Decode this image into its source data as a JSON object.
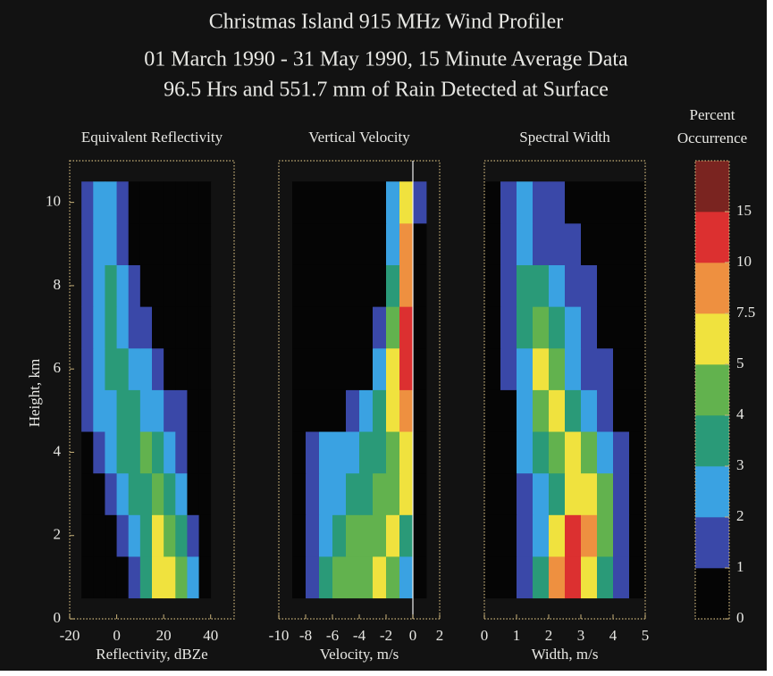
{
  "chart_data": {
    "type": "heatmap",
    "title": [
      "Christmas Island 915 MHz Wind Profiler",
      "01 March 1990 - 31 May 1990, 15 Minute Average Data",
      "96.5 Hrs and 551.7 mm of Rain Detected at Surface"
    ],
    "y_label": "Height, km",
    "ylim": [
      0,
      11
    ],
    "yticks": [
      0,
      2,
      4,
      6,
      8,
      10
    ],
    "y_bins": [
      0.5,
      1.5,
      2.5,
      3.5,
      4.5,
      5.5,
      6.5,
      7.5,
      8.5,
      9.5,
      10.5
    ],
    "panels": [
      {
        "title": "Equivalent Reflectivity",
        "x_label": "Reflectivity, dBZe",
        "xlim": [
          -20,
          50
        ],
        "xticks": [
          -20,
          0,
          20,
          40
        ],
        "x_bins": [
          -15,
          -10,
          -5,
          0,
          5,
          10,
          15,
          20,
          25,
          30,
          35,
          40
        ],
        "values": [
          [
            0,
            0,
            0,
            0.5,
            1.5,
            3,
            5,
            7,
            4,
            2,
            0.5
          ],
          [
            0,
            0,
            0.5,
            1,
            2,
            3.5,
            5,
            4.5,
            3,
            1,
            0.3
          ],
          [
            0,
            0.5,
            1,
            2,
            3,
            3.5,
            4,
            3,
            2,
            0.5,
            0
          ],
          [
            0.5,
            1.5,
            2,
            3,
            3.5,
            4,
            3,
            2,
            1,
            0.5,
            0
          ],
          [
            1,
            2,
            2.5,
            3,
            3,
            2.5,
            2,
            1.5,
            1,
            0.5,
            0
          ],
          [
            1,
            2,
            3,
            3,
            2.5,
            2,
            1,
            0.5,
            0,
            0,
            0
          ],
          [
            1.5,
            2.5,
            3,
            2.5,
            1.5,
            1,
            0.5,
            0,
            0,
            0,
            0
          ],
          [
            1.5,
            2.5,
            3,
            2,
            1,
            0.5,
            0,
            0,
            0,
            0,
            0
          ],
          [
            1.5,
            2.5,
            2.5,
            1.5,
            0.5,
            0,
            0,
            0,
            0,
            0,
            0
          ],
          [
            1,
            2,
            2,
            1,
            0.5,
            0,
            0,
            0,
            0,
            0,
            0
          ]
        ]
      },
      {
        "title": "Vertical Velocity",
        "x_label": "Velocity, m/s",
        "xlim": [
          -10,
          2
        ],
        "xticks": [
          -10,
          -8,
          -6,
          -4,
          -2,
          0,
          2
        ],
        "reference_line": 0,
        "x_bins": [
          -9,
          -8,
          -7,
          -6,
          -5,
          -4,
          -3,
          -2,
          -1,
          0,
          1
        ],
        "values": [
          [
            0.5,
            1.5,
            3,
            4,
            4,
            4.5,
            5,
            4,
            2,
            0
          ],
          [
            0.5,
            1,
            2.5,
            3,
            4,
            4,
            4.5,
            5,
            3,
            0
          ],
          [
            0.3,
            1,
            2,
            2,
            3,
            3,
            4,
            4,
            5,
            0.3
          ],
          [
            0.5,
            1.5,
            2,
            2,
            2.5,
            3,
            3.5,
            4,
            6,
            0.5
          ],
          [
            0,
            0,
            0,
            0.5,
            1,
            2,
            3,
            5,
            8,
            0.5
          ],
          [
            0,
            0,
            0,
            0,
            0,
            0.5,
            2,
            5,
            10,
            0.5
          ],
          [
            0,
            0,
            0,
            0,
            0,
            0,
            1,
            4,
            10,
            0.5
          ],
          [
            0,
            0,
            0,
            0,
            0,
            0,
            0.5,
            3,
            9,
            0.5
          ],
          [
            0,
            0,
            0,
            0,
            0,
            0,
            0,
            2,
            9,
            0.5
          ],
          [
            0,
            0,
            0,
            0,
            0,
            0,
            0,
            2,
            7,
            1
          ]
        ]
      },
      {
        "title": "Spectral Width",
        "x_label": "Width, m/s",
        "xlim": [
          0,
          5
        ],
        "xticks": [
          0,
          1,
          2,
          3,
          4,
          5
        ],
        "x_bins": [
          0,
          0.5,
          1,
          1.5,
          2,
          2.5,
          3,
          3.5,
          4,
          4.5,
          5
        ],
        "values": [
          [
            0,
            0,
            1,
            3,
            8,
            10,
            7,
            3,
            1,
            0
          ],
          [
            0,
            0,
            1,
            2,
            5,
            10,
            8,
            4,
            1,
            0.3
          ],
          [
            0,
            0,
            1.5,
            2,
            3,
            6,
            7,
            4,
            1.5,
            0.5
          ],
          [
            0,
            0,
            2,
            3,
            4,
            5,
            4,
            2,
            1,
            0.5
          ],
          [
            0,
            0.5,
            2,
            4,
            5,
            3,
            2,
            1,
            0.5,
            0.5
          ],
          [
            0,
            1,
            2,
            6,
            4,
            2.5,
            1.5,
            1,
            0.5,
            0.3
          ],
          [
            0,
            1,
            3,
            4,
            3,
            2,
            1,
            0.5,
            0.5,
            0.3
          ],
          [
            0,
            1,
            3,
            3,
            2,
            1.5,
            1,
            0.5,
            0.3,
            0
          ],
          [
            0,
            1.5,
            2,
            1.5,
            1.5,
            1,
            0.5,
            0.3,
            0,
            0
          ],
          [
            0,
            1.5,
            2,
            1.5,
            1,
            0.5,
            0.3,
            0,
            0,
            0
          ]
        ]
      }
    ],
    "colorbar": {
      "title": [
        "Percent",
        "Occurrence"
      ],
      "levels": [
        0,
        1,
        2,
        3,
        4,
        5,
        7.5,
        10,
        15
      ],
      "colors": [
        "#050505",
        "#3a48a8",
        "#3aa2e2",
        "#2a9a78",
        "#62b24e",
        "#f0e23e",
        "#ee9040",
        "#dc3030",
        "#7a2420"
      ]
    }
  }
}
